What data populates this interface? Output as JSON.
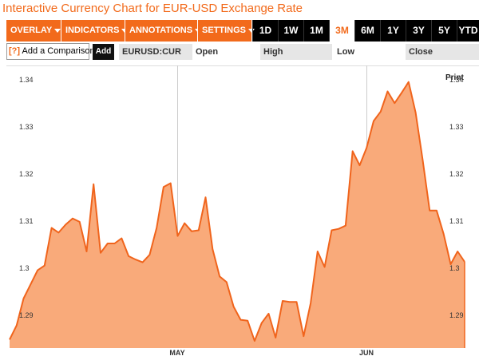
{
  "header": {
    "title": "Interactive Currency Chart for EUR-USD Exchange Rate"
  },
  "toolbar": {
    "menus": [
      {
        "label": "OVERLAY"
      },
      {
        "label": "INDICATORS"
      },
      {
        "label": "ANNOTATIONS"
      },
      {
        "label": "SETTINGS"
      }
    ],
    "ranges": [
      "1D",
      "1W",
      "1M",
      "3M",
      "6M",
      "1Y",
      "3Y",
      "5Y",
      "YTD"
    ],
    "active_range": "3M"
  },
  "compare": {
    "help": "[?]",
    "placeholder": "Add a Comparison",
    "add_label": "Add"
  },
  "quote": {
    "symbol": "EURUSD:CUR",
    "open_label": "Open",
    "high_label": "High",
    "low_label": "Low",
    "close_label": "Close"
  },
  "print_label": "Print",
  "colors": {
    "accent": "#f26a1b",
    "fill": "#f9aa7a",
    "line": "#f0641c"
  },
  "chart_data": {
    "type": "area",
    "title": "",
    "xlabel": "",
    "ylabel": "",
    "ylim": [
      1.283,
      1.343
    ],
    "yticks": [
      1.29,
      1.3,
      1.31,
      1.32,
      1.33,
      1.34
    ],
    "ytick_labels": [
      "1.29",
      "1.3",
      "1.31",
      "1.32",
      "1.33",
      "1.34"
    ],
    "xtick_labels": [
      "MAY",
      "JUN"
    ],
    "xtick_positions": [
      24,
      51
    ],
    "grid": "vertical",
    "series": [
      {
        "values": [
          1.2848,
          1.2878,
          1.2935,
          1.2965,
          1.2995,
          1.3005,
          1.3085,
          1.3075,
          1.3092,
          1.3105,
          1.3098,
          1.3035,
          1.3178,
          1.3032,
          1.3052,
          1.3052,
          1.3063,
          1.3025,
          1.3018,
          1.3012,
          1.3028,
          1.3085,
          1.3172,
          1.318,
          1.3068,
          1.3095,
          1.3078,
          1.308,
          1.315,
          1.304,
          1.2982,
          1.297,
          1.2918,
          1.289,
          1.2888,
          1.2845,
          1.2883,
          1.2903,
          1.2852,
          1.293,
          1.2928,
          1.2928,
          1.2855,
          1.2925,
          1.3035,
          1.3002,
          1.308,
          1.3083,
          1.309,
          1.3248,
          1.3218,
          1.3255,
          1.3312,
          1.3332,
          1.3375,
          1.335,
          1.3372,
          1.3395,
          1.333,
          1.323,
          1.3122,
          1.3122,
          1.3072,
          1.3008,
          1.3035,
          1.3013
        ]
      }
    ]
  }
}
